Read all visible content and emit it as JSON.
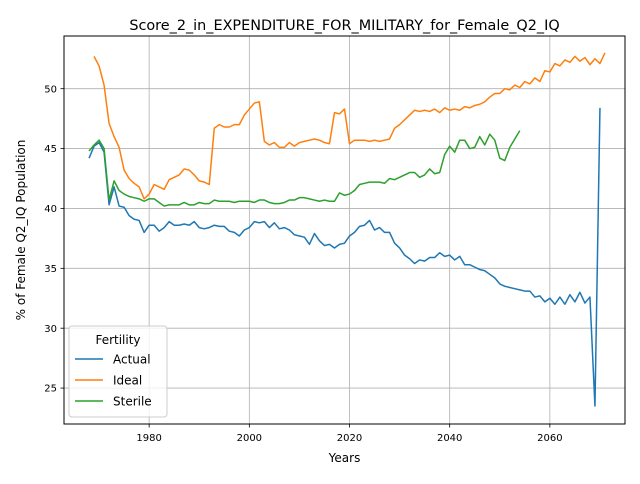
{
  "chart_data": {
    "type": "line",
    "title": "Score_2_in_EXPENDITURE_FOR_MILITARY_for_Female_Q2_IQ",
    "xlabel": "Years",
    "ylabel": "% of Female Q2_IQ Population",
    "xlim": [
      1963,
      2075
    ],
    "ylim": [
      22,
      54.4
    ],
    "xticks": [
      1980,
      2000,
      2020,
      2040,
      2060
    ],
    "yticks": [
      25,
      30,
      35,
      40,
      45,
      50
    ],
    "grid": true,
    "legend": {
      "title": "Fertility",
      "placement": "lower-left"
    },
    "series": [
      {
        "name": "Actual",
        "color": "#1f77b4",
        "points": [
          [
            1968,
            44.2
          ],
          [
            1969,
            45.2
          ],
          [
            1970,
            45.5
          ],
          [
            1971,
            44.7
          ],
          [
            1972,
            40.3
          ],
          [
            1973,
            41.8
          ],
          [
            1974,
            40.2
          ],
          [
            1975,
            40.1
          ],
          [
            1976,
            39.4
          ],
          [
            1977,
            39.1
          ],
          [
            1978,
            39.0
          ],
          [
            1979,
            38.0
          ],
          [
            1980,
            38.6
          ],
          [
            1981,
            38.6
          ],
          [
            1982,
            38.1
          ],
          [
            1983,
            38.4
          ],
          [
            1984,
            38.9
          ],
          [
            1985,
            38.6
          ],
          [
            1986,
            38.6
          ],
          [
            1987,
            38.7
          ],
          [
            1988,
            38.6
          ],
          [
            1989,
            38.9
          ],
          [
            1990,
            38.4
          ],
          [
            1991,
            38.3
          ],
          [
            1992,
            38.4
          ],
          [
            1993,
            38.6
          ],
          [
            1994,
            38.5
          ],
          [
            1995,
            38.5
          ],
          [
            1996,
            38.1
          ],
          [
            1997,
            38.0
          ],
          [
            1998,
            37.7
          ],
          [
            1999,
            38.2
          ],
          [
            2000,
            38.4
          ],
          [
            2001,
            38.9
          ],
          [
            2002,
            38.8
          ],
          [
            2003,
            38.9
          ],
          [
            2004,
            38.4
          ],
          [
            2005,
            38.8
          ],
          [
            2006,
            38.3
          ],
          [
            2007,
            38.4
          ],
          [
            2008,
            38.2
          ],
          [
            2009,
            37.8
          ],
          [
            2010,
            37.7
          ],
          [
            2011,
            37.6
          ],
          [
            2012,
            37.0
          ],
          [
            2013,
            37.9
          ],
          [
            2014,
            37.3
          ],
          [
            2015,
            36.9
          ],
          [
            2016,
            37.0
          ],
          [
            2017,
            36.7
          ],
          [
            2018,
            37.0
          ],
          [
            2019,
            37.1
          ],
          [
            2020,
            37.7
          ],
          [
            2021,
            38.0
          ],
          [
            2022,
            38.5
          ],
          [
            2023,
            38.6
          ],
          [
            2024,
            39.0
          ],
          [
            2025,
            38.2
          ],
          [
            2026,
            38.4
          ],
          [
            2027,
            38.0
          ],
          [
            2028,
            38.0
          ],
          [
            2029,
            37.1
          ],
          [
            2030,
            36.7
          ],
          [
            2031,
            36.1
          ],
          [
            2032,
            35.8
          ],
          [
            2033,
            35.4
          ],
          [
            2034,
            35.7
          ],
          [
            2035,
            35.6
          ],
          [
            2036,
            35.9
          ],
          [
            2037,
            35.9
          ],
          [
            2038,
            36.3
          ],
          [
            2039,
            36.0
          ],
          [
            2040,
            36.1
          ],
          [
            2041,
            35.7
          ],
          [
            2042,
            36.0
          ],
          [
            2043,
            35.3
          ],
          [
            2044,
            35.3
          ],
          [
            2045,
            35.1
          ],
          [
            2046,
            34.9
          ],
          [
            2047,
            34.8
          ],
          [
            2048,
            34.5
          ],
          [
            2049,
            34.2
          ],
          [
            2050,
            33.7
          ],
          [
            2051,
            33.5
          ],
          [
            2052,
            33.4
          ],
          [
            2053,
            33.3
          ],
          [
            2054,
            33.2
          ],
          [
            2055,
            33.1
          ],
          [
            2056,
            33.1
          ],
          [
            2057,
            32.6
          ],
          [
            2058,
            32.7
          ],
          [
            2059,
            32.2
          ],
          [
            2060,
            32.5
          ],
          [
            2061,
            32.0
          ],
          [
            2062,
            32.6
          ],
          [
            2063,
            32.0
          ],
          [
            2064,
            32.8
          ],
          [
            2065,
            32.2
          ],
          [
            2066,
            33.0
          ],
          [
            2067,
            32.1
          ],
          [
            2068,
            32.6
          ],
          [
            2069,
            23.5
          ],
          [
            2070,
            48.4
          ]
        ]
      },
      {
        "name": "Ideal",
        "color": "#ff7f0e",
        "points": [
          [
            1969,
            52.7
          ],
          [
            1970,
            51.9
          ],
          [
            1971,
            50.3
          ],
          [
            1972,
            47.1
          ],
          [
            1973,
            46.0
          ],
          [
            1974,
            45.1
          ],
          [
            1975,
            43.2
          ],
          [
            1976,
            42.5
          ],
          [
            1977,
            42.1
          ],
          [
            1978,
            41.8
          ],
          [
            1979,
            40.8
          ],
          [
            1980,
            41.2
          ],
          [
            1981,
            42.0
          ],
          [
            1982,
            41.8
          ],
          [
            1983,
            41.6
          ],
          [
            1984,
            42.4
          ],
          [
            1985,
            42.6
          ],
          [
            1986,
            42.8
          ],
          [
            1987,
            43.3
          ],
          [
            1988,
            43.2
          ],
          [
            1989,
            42.8
          ],
          [
            1990,
            42.3
          ],
          [
            1991,
            42.2
          ],
          [
            1992,
            42.0
          ],
          [
            1993,
            46.7
          ],
          [
            1994,
            47.0
          ],
          [
            1995,
            46.8
          ],
          [
            1996,
            46.8
          ],
          [
            1997,
            47.0
          ],
          [
            1998,
            47.0
          ],
          [
            1999,
            47.8
          ],
          [
            2000,
            48.3
          ],
          [
            2001,
            48.8
          ],
          [
            2002,
            48.9
          ],
          [
            2003,
            45.6
          ],
          [
            2004,
            45.3
          ],
          [
            2005,
            45.5
          ],
          [
            2006,
            45.1
          ],
          [
            2007,
            45.1
          ],
          [
            2008,
            45.5
          ],
          [
            2009,
            45.2
          ],
          [
            2010,
            45.5
          ],
          [
            2011,
            45.6
          ],
          [
            2012,
            45.7
          ],
          [
            2013,
            45.8
          ],
          [
            2014,
            45.7
          ],
          [
            2015,
            45.5
          ],
          [
            2016,
            45.4
          ],
          [
            2017,
            48.0
          ],
          [
            2018,
            47.9
          ],
          [
            2019,
            48.3
          ],
          [
            2020,
            45.4
          ],
          [
            2021,
            45.7
          ],
          [
            2022,
            45.7
          ],
          [
            2023,
            45.7
          ],
          [
            2024,
            45.6
          ],
          [
            2025,
            45.7
          ],
          [
            2026,
            45.6
          ],
          [
            2027,
            45.7
          ],
          [
            2028,
            45.8
          ],
          [
            2029,
            46.7
          ],
          [
            2030,
            47.0
          ],
          [
            2031,
            47.4
          ],
          [
            2032,
            47.8
          ],
          [
            2033,
            48.2
          ],
          [
            2034,
            48.1
          ],
          [
            2035,
            48.2
          ],
          [
            2036,
            48.1
          ],
          [
            2037,
            48.3
          ],
          [
            2038,
            48.0
          ],
          [
            2039,
            48.4
          ],
          [
            2040,
            48.2
          ],
          [
            2041,
            48.3
          ],
          [
            2042,
            48.2
          ],
          [
            2043,
            48.5
          ],
          [
            2044,
            48.4
          ],
          [
            2045,
            48.6
          ],
          [
            2046,
            48.7
          ],
          [
            2047,
            48.9
          ],
          [
            2048,
            49.3
          ],
          [
            2049,
            49.6
          ],
          [
            2050,
            49.6
          ],
          [
            2051,
            50.0
          ],
          [
            2052,
            49.9
          ],
          [
            2053,
            50.3
          ],
          [
            2054,
            50.1
          ],
          [
            2055,
            50.6
          ],
          [
            2056,
            50.4
          ],
          [
            2057,
            50.9
          ],
          [
            2058,
            50.6
          ],
          [
            2059,
            51.5
          ],
          [
            2060,
            51.4
          ],
          [
            2061,
            52.1
          ],
          [
            2062,
            51.9
          ],
          [
            2063,
            52.4
          ],
          [
            2064,
            52.2
          ],
          [
            2065,
            52.7
          ],
          [
            2066,
            52.3
          ],
          [
            2067,
            52.6
          ],
          [
            2068,
            52.0
          ],
          [
            2069,
            52.5
          ],
          [
            2070,
            52.1
          ],
          [
            2071,
            53.0
          ]
        ]
      },
      {
        "name": "Sterile",
        "color": "#2ca02c",
        "points": [
          [
            1968,
            44.8
          ],
          [
            1969,
            45.3
          ],
          [
            1970,
            45.7
          ],
          [
            1971,
            45.0
          ],
          [
            1972,
            40.7
          ],
          [
            1973,
            42.3
          ],
          [
            1974,
            41.5
          ],
          [
            1975,
            41.2
          ],
          [
            1976,
            41.0
          ],
          [
            1977,
            40.9
          ],
          [
            1978,
            40.8
          ],
          [
            1979,
            40.6
          ],
          [
            1980,
            40.8
          ],
          [
            1981,
            40.8
          ],
          [
            1982,
            40.5
          ],
          [
            1983,
            40.2
          ],
          [
            1984,
            40.3
          ],
          [
            1985,
            40.3
          ],
          [
            1986,
            40.3
          ],
          [
            1987,
            40.5
          ],
          [
            1988,
            40.3
          ],
          [
            1989,
            40.3
          ],
          [
            1990,
            40.5
          ],
          [
            1991,
            40.4
          ],
          [
            1992,
            40.4
          ],
          [
            1993,
            40.7
          ],
          [
            1994,
            40.6
          ],
          [
            1995,
            40.6
          ],
          [
            1996,
            40.6
          ],
          [
            1997,
            40.5
          ],
          [
            1998,
            40.6
          ],
          [
            1999,
            40.6
          ],
          [
            2000,
            40.6
          ],
          [
            2001,
            40.5
          ],
          [
            2002,
            40.7
          ],
          [
            2003,
            40.7
          ],
          [
            2004,
            40.5
          ],
          [
            2005,
            40.4
          ],
          [
            2006,
            40.4
          ],
          [
            2007,
            40.5
          ],
          [
            2008,
            40.7
          ],
          [
            2009,
            40.7
          ],
          [
            2010,
            40.9
          ],
          [
            2011,
            40.9
          ],
          [
            2012,
            40.8
          ],
          [
            2013,
            40.7
          ],
          [
            2014,
            40.6
          ],
          [
            2015,
            40.7
          ],
          [
            2016,
            40.6
          ],
          [
            2017,
            40.6
          ],
          [
            2018,
            41.3
          ],
          [
            2019,
            41.1
          ],
          [
            2020,
            41.2
          ],
          [
            2021,
            41.5
          ],
          [
            2022,
            42.0
          ],
          [
            2023,
            42.1
          ],
          [
            2024,
            42.2
          ],
          [
            2025,
            42.2
          ],
          [
            2026,
            42.2
          ],
          [
            2027,
            42.1
          ],
          [
            2028,
            42.5
          ],
          [
            2029,
            42.4
          ],
          [
            2030,
            42.6
          ],
          [
            2031,
            42.8
          ],
          [
            2032,
            43.0
          ],
          [
            2033,
            43.0
          ],
          [
            2034,
            42.6
          ],
          [
            2035,
            42.8
          ],
          [
            2036,
            43.3
          ],
          [
            2037,
            42.9
          ],
          [
            2038,
            43.0
          ],
          [
            2039,
            44.5
          ],
          [
            2040,
            45.2
          ],
          [
            2041,
            44.7
          ],
          [
            2042,
            45.7
          ],
          [
            2043,
            45.7
          ],
          [
            2044,
            45.0
          ],
          [
            2045,
            45.1
          ],
          [
            2046,
            46.0
          ],
          [
            2047,
            45.3
          ],
          [
            2048,
            46.2
          ],
          [
            2049,
            45.7
          ],
          [
            2050,
            44.2
          ],
          [
            2051,
            44.0
          ],
          [
            2052,
            45.1
          ],
          [
            2053,
            45.8
          ],
          [
            2054,
            46.5
          ]
        ]
      }
    ]
  }
}
